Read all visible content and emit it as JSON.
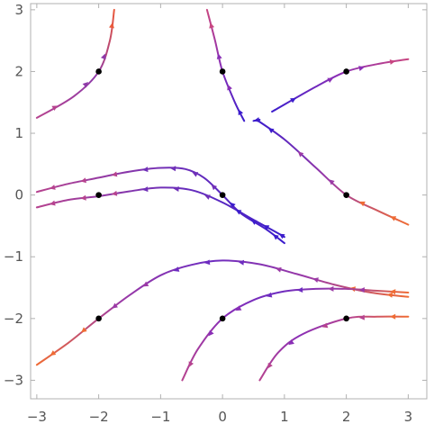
{
  "chart_data": {
    "type": "stream-plot",
    "xlim": [
      -3.1,
      3.3
    ],
    "ylim": [
      -3.3,
      3.1
    ],
    "x_ticks": [
      -3,
      -2,
      -1,
      0,
      1,
      2,
      3
    ],
    "y_ticks": [
      -3,
      -2,
      -1,
      0,
      1,
      2,
      3
    ],
    "x_tick_labels": [
      "−3",
      "−2",
      "−1",
      "0",
      "1",
      "2",
      "3"
    ],
    "y_tick_labels": [
      "−3",
      "−2",
      "−1",
      "0",
      "1",
      "2",
      "3"
    ],
    "grid": false,
    "seed_points": [
      {
        "x": -2,
        "y": 2
      },
      {
        "x": 0,
        "y": 2
      },
      {
        "x": 2,
        "y": 2
      },
      {
        "x": -2,
        "y": 0
      },
      {
        "x": 0,
        "y": 0
      },
      {
        "x": 2,
        "y": 0
      },
      {
        "x": -2,
        "y": -2
      },
      {
        "x": 0,
        "y": -2
      },
      {
        "x": 2,
        "y": -2
      }
    ],
    "streamlines": [
      {
        "id": "seed-m2-2",
        "points": [
          [
            -1.75,
            3.0
          ],
          [
            -1.82,
            2.5
          ],
          [
            -2.0,
            2.0
          ],
          [
            -2.4,
            1.6
          ],
          [
            -3.0,
            1.25
          ]
        ],
        "colors": [
          "#ea5a3c",
          "#8e3aa8",
          "#b6438f"
        ]
      },
      {
        "id": "seed-0-2",
        "points": [
          [
            -0.25,
            3.0
          ],
          [
            -0.12,
            2.5
          ],
          [
            0.0,
            2.0
          ],
          [
            0.2,
            1.5
          ],
          [
            0.35,
            1.2
          ]
        ],
        "colors": [
          "#c84681",
          "#8a2fb6",
          "#3b1ccc"
        ]
      },
      {
        "id": "seed-0-2-tail",
        "points": [
          [
            0.5,
            1.2
          ],
          [
            0.6,
            1.22
          ]
        ],
        "colors": [
          "#3b1ccc",
          "#3b1ccc"
        ]
      },
      {
        "id": "seed-2-2",
        "points": [
          [
            3.0,
            2.2
          ],
          [
            2.5,
            2.12
          ],
          [
            2.0,
            2.0
          ],
          [
            1.5,
            1.75
          ],
          [
            0.8,
            1.35
          ]
        ],
        "colors": [
          "#c84681",
          "#8a2fb6",
          "#3b1ccc"
        ]
      },
      {
        "id": "seed-m2-0-upper",
        "points": [
          [
            -3.0,
            0.05
          ],
          [
            -2.5,
            0.18
          ],
          [
            -2.0,
            0.28
          ],
          [
            -1.5,
            0.38
          ],
          [
            -1.0,
            0.44
          ],
          [
            -0.6,
            0.42
          ],
          [
            -0.3,
            0.28
          ],
          [
            0.0,
            0.0
          ],
          [
            0.3,
            -0.3
          ],
          [
            0.7,
            -0.55
          ],
          [
            1.0,
            -0.78
          ]
        ],
        "colors": [
          "#b6438f",
          "#7030b8",
          "#3b1ccc"
        ]
      },
      {
        "id": "seed-m2-0-lower",
        "points": [
          [
            -3.0,
            -0.2
          ],
          [
            -2.5,
            -0.08
          ],
          [
            -2.0,
            -0.02
          ],
          [
            -1.5,
            0.06
          ],
          [
            -1.0,
            0.12
          ],
          [
            -0.5,
            0.08
          ],
          [
            0.0,
            -0.12
          ],
          [
            0.5,
            -0.4
          ],
          [
            0.9,
            -0.62
          ],
          [
            1.0,
            -0.68
          ]
        ],
        "colors": [
          "#b6438f",
          "#7030b8",
          "#3b1ccc"
        ]
      },
      {
        "id": "seed-2-0",
        "points": [
          [
            0.55,
            1.22
          ],
          [
            1.0,
            0.9
          ],
          [
            1.5,
            0.45
          ],
          [
            2.0,
            0.0
          ],
          [
            2.5,
            -0.25
          ],
          [
            3.0,
            -0.48
          ]
        ],
        "colors": [
          "#3b1ccc",
          "#9b3aa6",
          "#ef6b34"
        ]
      },
      {
        "id": "seed-m2-m2",
        "points": [
          [
            -3.0,
            -2.75
          ],
          [
            -2.5,
            -2.4
          ],
          [
            -2.0,
            -2.0
          ],
          [
            -1.5,
            -1.62
          ],
          [
            -1.0,
            -1.3
          ],
          [
            -0.5,
            -1.13
          ],
          [
            0.0,
            -1.06
          ],
          [
            0.6,
            -1.12
          ],
          [
            1.2,
            -1.28
          ],
          [
            1.8,
            -1.45
          ],
          [
            2.4,
            -1.58
          ],
          [
            3.0,
            -1.65
          ]
        ],
        "colors": [
          "#ef6b34",
          "#9b3aa6",
          "#6d2cc0",
          "#9b3aa6",
          "#ef6b34"
        ]
      },
      {
        "id": "seed-0-m2",
        "points": [
          [
            -0.65,
            -3.0
          ],
          [
            -0.4,
            -2.5
          ],
          [
            0.0,
            -2.0
          ],
          [
            0.5,
            -1.7
          ],
          [
            1.0,
            -1.56
          ],
          [
            1.5,
            -1.52
          ],
          [
            2.0,
            -1.52
          ],
          [
            2.5,
            -1.55
          ],
          [
            3.0,
            -1.58
          ]
        ],
        "colors": [
          "#b6438f",
          "#8a2fb6",
          "#6d2cc0",
          "#9b3aa6",
          "#ef6b34"
        ]
      },
      {
        "id": "seed-2-m2",
        "points": [
          [
            0.6,
            -3.0
          ],
          [
            0.9,
            -2.55
          ],
          [
            1.3,
            -2.25
          ],
          [
            2.0,
            -2.0
          ],
          [
            2.5,
            -1.97
          ],
          [
            3.0,
            -1.97
          ]
        ],
        "colors": [
          "#b6438f",
          "#8a2fb6",
          "#b6438f",
          "#ef6b34"
        ]
      }
    ]
  }
}
